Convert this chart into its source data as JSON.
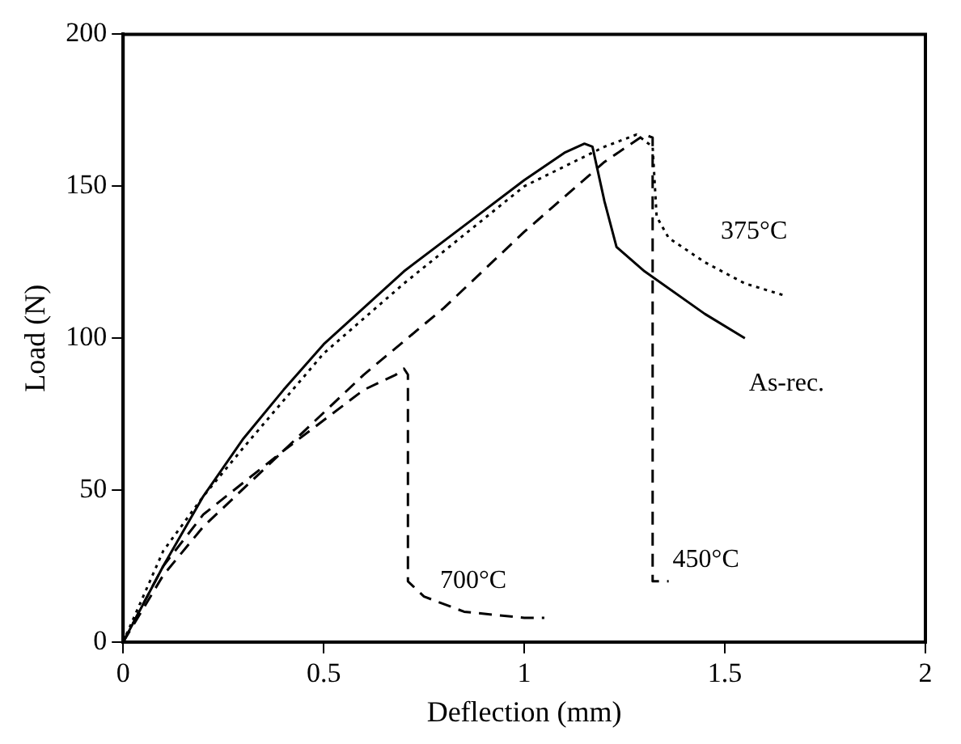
{
  "chart_data": {
    "type": "line",
    "xlabel": "Deflection (mm)",
    "ylabel": "Load (N)",
    "xlim": [
      0,
      2
    ],
    "xticks": [
      0,
      0.5,
      1,
      1.5,
      2
    ],
    "ylim": [
      0,
      200
    ],
    "yticks": [
      0,
      50,
      100,
      150,
      200
    ],
    "grid": false,
    "legend": false,
    "marker": "none",
    "series": [
      {
        "name": "As-rec.",
        "color": "#000000",
        "line_style": "solid",
        "x": [
          0,
          0.1,
          0.2,
          0.3,
          0.4,
          0.5,
          0.7,
          0.9,
          1.0,
          1.1,
          1.15,
          1.17,
          1.2,
          1.23,
          1.3,
          1.45,
          1.55
        ],
        "values": [
          0,
          25,
          48,
          67,
          83,
          98,
          122,
          142,
          152,
          161,
          164,
          163,
          145,
          130,
          122,
          108,
          100
        ]
      },
      {
        "name": "375°C",
        "color": "#000000",
        "line_style": "dotted",
        "x": [
          0,
          0.1,
          0.2,
          0.3,
          0.5,
          0.7,
          1.0,
          1.2,
          1.28,
          1.32,
          1.33,
          1.36,
          1.45,
          1.55,
          1.65
        ],
        "values": [
          0,
          30,
          48,
          64,
          95,
          118,
          150,
          163,
          167,
          163,
          140,
          133,
          125,
          118,
          114
        ]
      },
      {
        "name": "450°C",
        "color": "#000000",
        "line_style": "dashed",
        "x": [
          0,
          0.1,
          0.2,
          0.4,
          0.6,
          0.8,
          1.0,
          1.2,
          1.3,
          1.32,
          1.32,
          1.36
        ],
        "values": [
          0,
          22,
          38,
          63,
          88,
          110,
          135,
          158,
          167,
          166,
          20,
          20
        ]
      },
      {
        "name": "700°C",
        "color": "#000000",
        "line_style": "dashed",
        "x": [
          0,
          0.1,
          0.2,
          0.4,
          0.6,
          0.68,
          0.7,
          0.71,
          0.71,
          0.75,
          0.85,
          1.0,
          1.05
        ],
        "values": [
          0,
          25,
          42,
          63,
          83,
          88,
          90,
          88,
          20,
          15,
          10,
          8,
          8
        ]
      }
    ]
  }
}
